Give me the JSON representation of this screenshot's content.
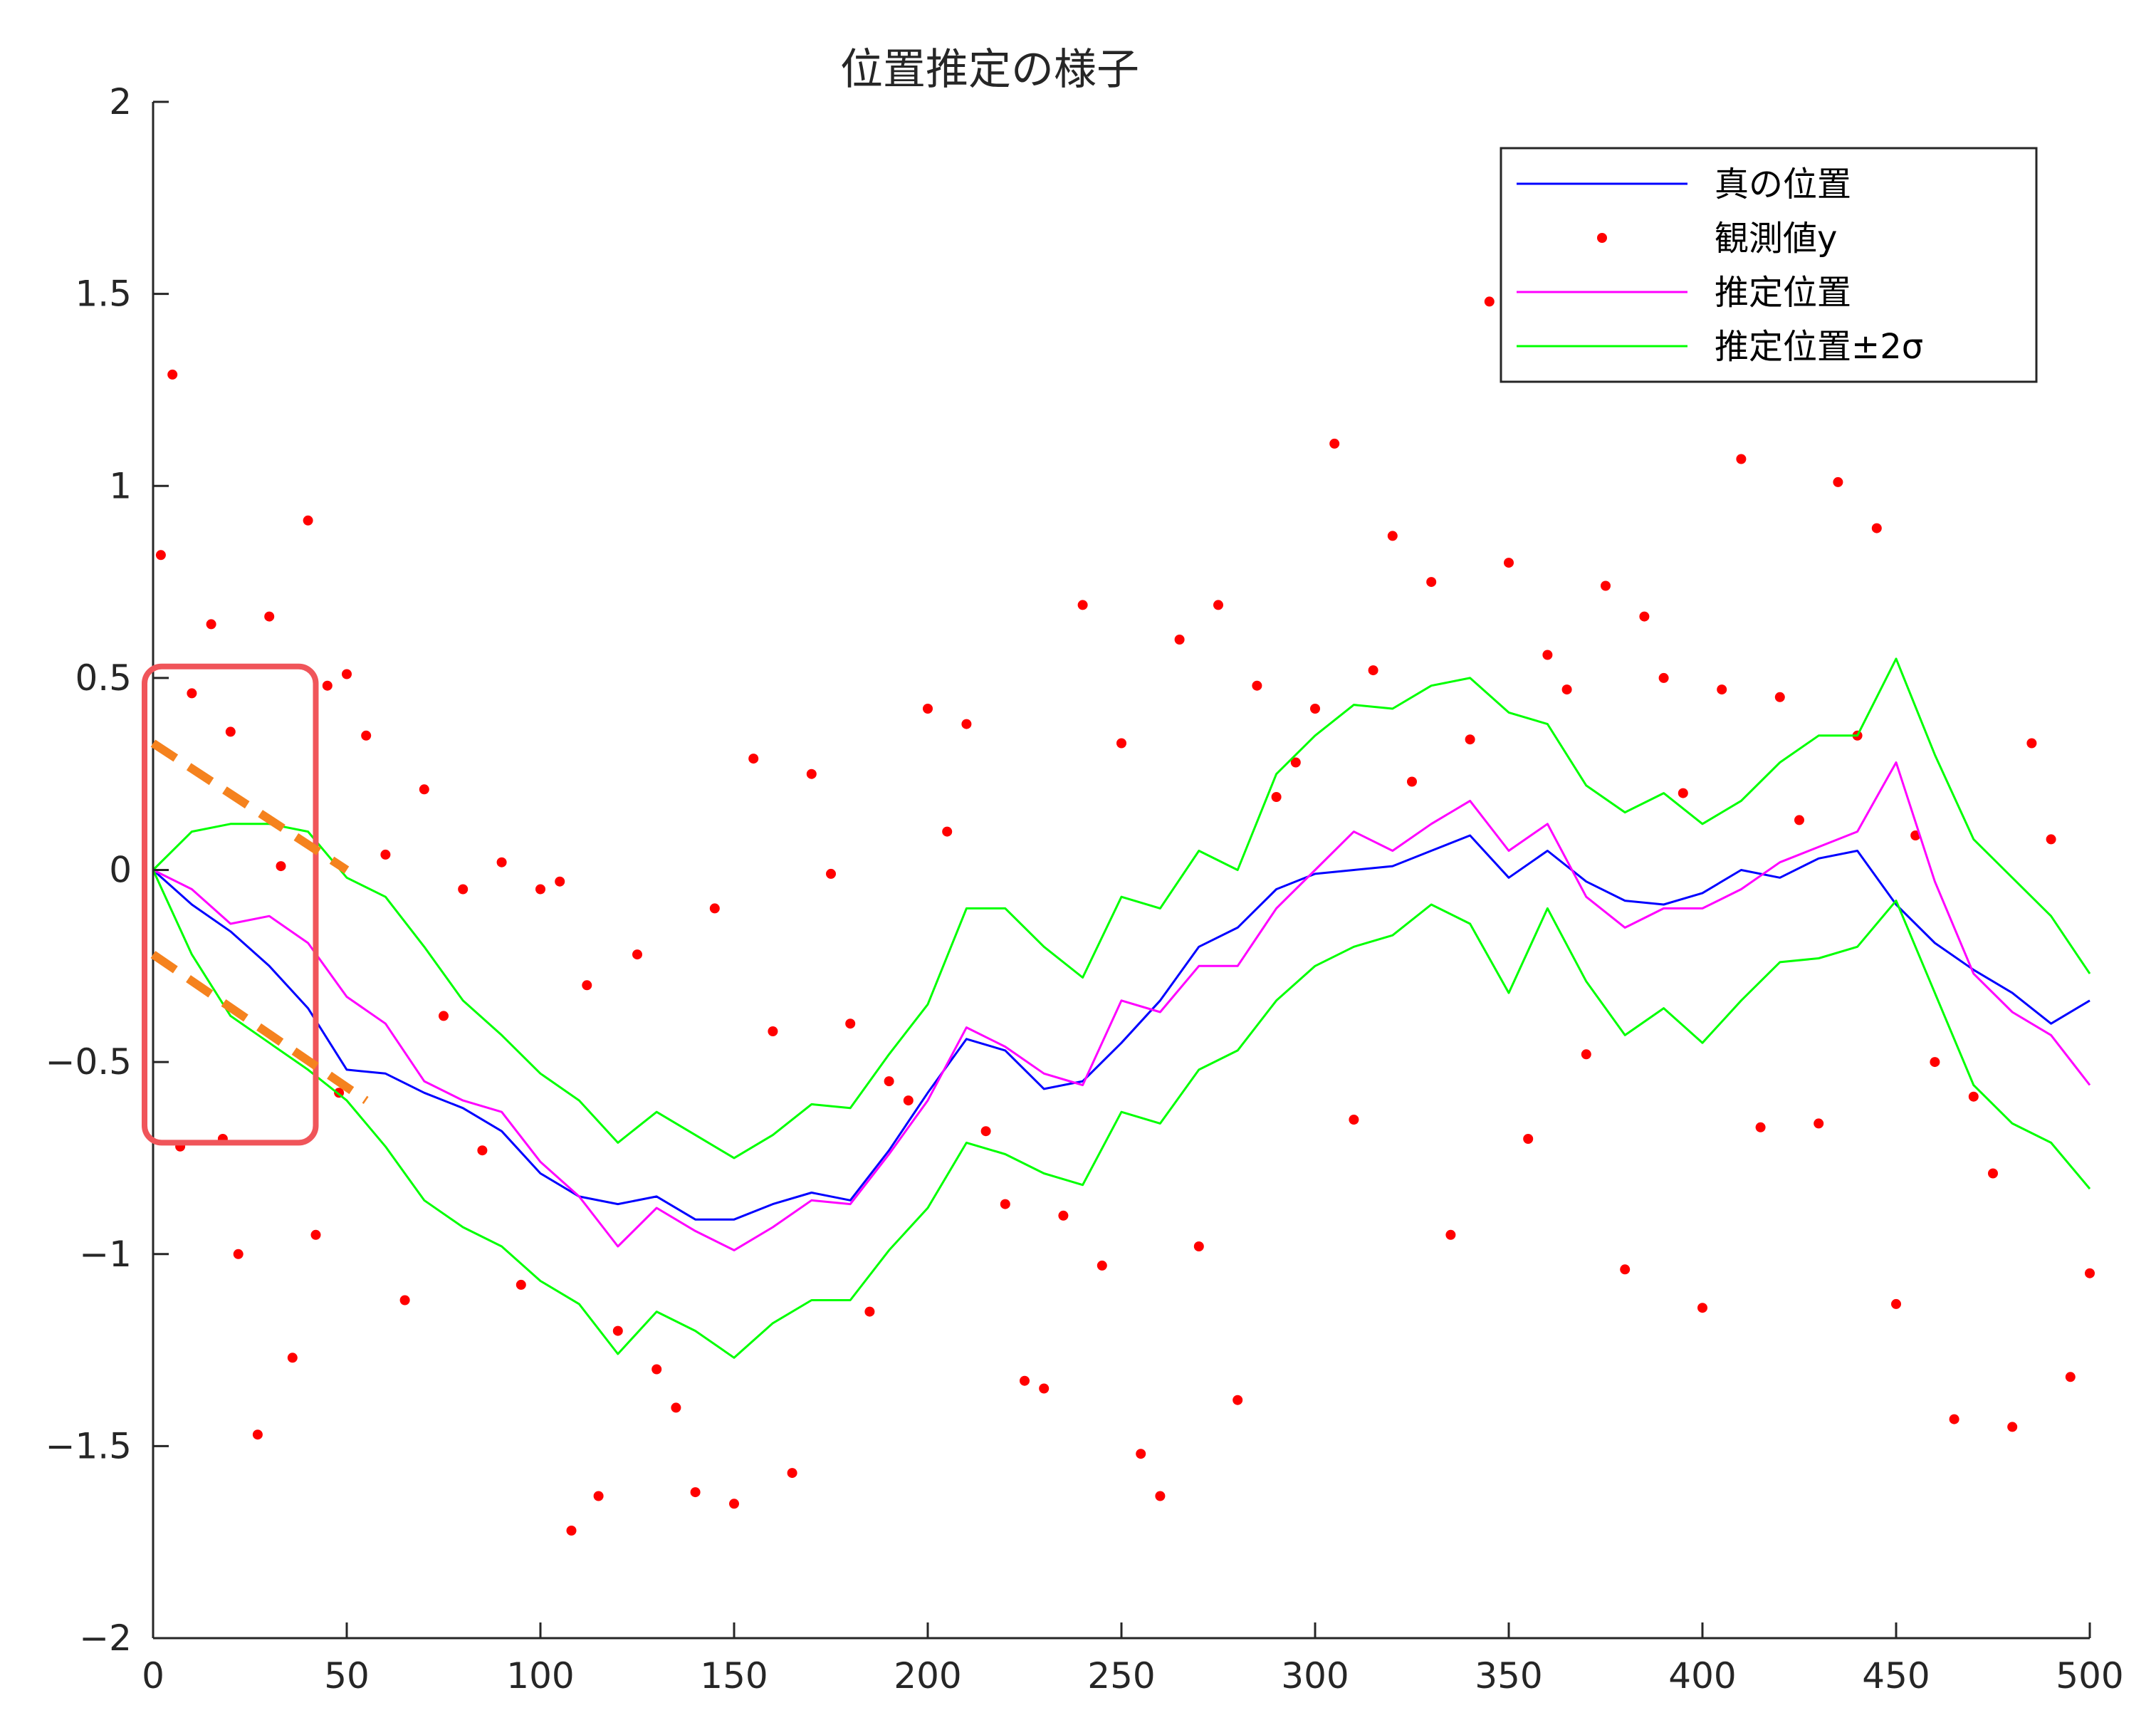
{
  "chart_data": {
    "type": "line",
    "title": "位置推定の様子",
    "xlabel": "",
    "ylabel": "",
    "xlim": [
      0,
      500
    ],
    "ylim": [
      -2,
      2
    ],
    "x_ticks": [
      0,
      50,
      100,
      150,
      200,
      250,
      300,
      350,
      400,
      450,
      500
    ],
    "x_tick_labels": [
      "0",
      "50",
      "100",
      "150",
      "200",
      "250",
      "300",
      "350",
      "400",
      "450",
      "500"
    ],
    "y_ticks": [
      2,
      1.5,
      1,
      0.5,
      0,
      -0.5,
      -1,
      -1.5,
      -2
    ],
    "y_tick_labels": [
      "2",
      "1.5",
      "1",
      "0.5",
      "0",
      "−0.5",
      "−1",
      "−1.5",
      "−2"
    ],
    "grid": false,
    "legend_position": "top-right",
    "series": [
      {
        "name": "真の位置",
        "style": "line",
        "color": "#0000ff",
        "x": [
          0,
          10,
          20,
          30,
          40,
          50,
          60,
          70,
          80,
          90,
          100,
          110,
          120,
          130,
          140,
          150,
          160,
          170,
          180,
          190,
          200,
          210,
          220,
          230,
          240,
          250,
          260,
          270,
          280,
          290,
          300,
          310,
          320,
          330,
          340,
          350,
          360,
          370,
          380,
          390,
          400,
          410,
          420,
          430,
          440,
          450,
          460,
          470,
          480,
          490,
          500
        ],
        "y": [
          0,
          -0.09,
          -0.16,
          -0.25,
          -0.36,
          -0.52,
          -0.53,
          -0.58,
          -0.62,
          -0.68,
          -0.79,
          -0.85,
          -0.87,
          -0.85,
          -0.91,
          -0.91,
          -0.87,
          -0.84,
          -0.86,
          -0.73,
          -0.58,
          -0.44,
          -0.47,
          -0.57,
          -0.55,
          -0.45,
          -0.34,
          -0.2,
          -0.15,
          -0.05,
          -0.01,
          0.0,
          0.01,
          0.05,
          0.09,
          -0.02,
          0.05,
          -0.03,
          -0.08,
          -0.09,
          -0.06,
          0.0,
          -0.02,
          0.03,
          0.05,
          -0.09,
          -0.19,
          -0.26,
          -0.32,
          -0.4,
          -0.34
        ]
      },
      {
        "name": "観測値y",
        "style": "markers",
        "color": "#ff0000",
        "x": [
          2,
          5,
          7,
          10,
          15,
          18,
          20,
          22,
          27,
          30,
          33,
          36,
          40,
          42,
          45,
          48,
          50,
          55,
          60,
          65,
          70,
          75,
          80,
          85,
          90,
          95,
          100,
          105,
          108,
          112,
          115,
          120,
          125,
          130,
          135,
          140,
          145,
          150,
          155,
          160,
          165,
          170,
          175,
          180,
          185,
          190,
          195,
          200,
          205,
          210,
          215,
          220,
          225,
          230,
          235,
          240,
          245,
          250,
          255,
          260,
          265,
          270,
          275,
          280,
          285,
          290,
          295,
          300,
          305,
          310,
          315,
          320,
          325,
          330,
          335,
          340,
          345,
          350,
          355,
          360,
          365,
          370,
          375,
          380,
          385,
          390,
          395,
          400,
          405,
          410,
          415,
          420,
          425,
          430,
          435,
          440,
          445,
          450,
          455,
          460,
          465,
          470,
          475,
          480,
          485,
          490,
          495,
          500
        ],
        "y": [
          0.82,
          1.29,
          -0.72,
          0.46,
          0.64,
          -0.7,
          0.36,
          -1.0,
          -1.47,
          0.66,
          0.01,
          -1.27,
          0.91,
          -0.95,
          0.48,
          -0.58,
          0.51,
          0.35,
          0.04,
          -1.12,
          0.21,
          -0.38,
          -0.05,
          -0.73,
          0.02,
          -1.08,
          -0.05,
          -0.03,
          -1.72,
          -0.3,
          -1.63,
          -1.2,
          -0.22,
          -1.3,
          -1.4,
          -1.62,
          -0.1,
          -1.65,
          0.29,
          -0.42,
          -1.57,
          0.25,
          -0.01,
          -0.4,
          -1.15,
          -0.55,
          -0.6,
          0.42,
          0.1,
          0.38,
          -0.68,
          -0.87,
          -1.33,
          -1.35,
          -0.9,
          0.69,
          -1.03,
          0.33,
          -1.52,
          -1.63,
          0.6,
          -0.98,
          0.69,
          -1.38,
          0.48,
          0.19,
          0.28,
          0.42,
          1.11,
          -0.65,
          0.52,
          0.87,
          0.23,
          0.75,
          -0.95,
          0.34,
          1.48,
          0.8,
          -0.7,
          0.56,
          0.47,
          -0.48,
          0.74,
          -1.04,
          0.66,
          0.5,
          0.2,
          -1.14,
          0.47,
          1.07,
          -0.67,
          0.45,
          0.13,
          -0.66,
          1.01,
          0.35,
          0.89,
          -1.13,
          0.09,
          -0.5,
          -1.43,
          -0.59,
          -0.79,
          -1.45,
          0.33,
          0.08,
          -1.32,
          -1.05
        ]
      },
      {
        "name": "推定位置",
        "style": "line",
        "color": "#ff00ff",
        "x": [
          0,
          10,
          20,
          30,
          40,
          50,
          60,
          70,
          80,
          90,
          100,
          110,
          120,
          130,
          140,
          150,
          160,
          170,
          180,
          190,
          200,
          210,
          220,
          230,
          240,
          250,
          260,
          270,
          280,
          290,
          300,
          310,
          320,
          330,
          340,
          350,
          360,
          370,
          380,
          390,
          400,
          410,
          420,
          430,
          440,
          450,
          460,
          470,
          480,
          490,
          500
        ],
        "y": [
          0,
          -0.05,
          -0.14,
          -0.12,
          -0.19,
          -0.33,
          -0.4,
          -0.55,
          -0.6,
          -0.63,
          -0.76,
          -0.85,
          -0.98,
          -0.88,
          -0.94,
          -0.99,
          -0.93,
          -0.86,
          -0.87,
          -0.74,
          -0.6,
          -0.41,
          -0.46,
          -0.53,
          -0.56,
          -0.34,
          -0.37,
          -0.25,
          -0.25,
          -0.1,
          0.0,
          0.1,
          0.05,
          0.12,
          0.18,
          0.05,
          0.12,
          -0.07,
          -0.15,
          -0.1,
          -0.1,
          -0.05,
          0.02,
          0.06,
          0.1,
          0.28,
          -0.03,
          -0.27,
          -0.37,
          -0.43,
          -0.56
        ]
      },
      {
        "name": "推定位置±2σ",
        "style": "line",
        "color": "#00ff00",
        "x": [
          0,
          10,
          20,
          30,
          40,
          50,
          60,
          70,
          80,
          90,
          100,
          110,
          120,
          130,
          140,
          150,
          160,
          170,
          180,
          190,
          200,
          210,
          220,
          230,
          240,
          250,
          260,
          270,
          280,
          290,
          300,
          310,
          320,
          330,
          340,
          350,
          360,
          370,
          380,
          390,
          400,
          410,
          420,
          430,
          440,
          450,
          460,
          470,
          480,
          490,
          500
        ],
        "y": [
          0,
          0.1,
          0.12,
          0.12,
          0.1,
          -0.02,
          -0.07,
          -0.2,
          -0.34,
          -0.43,
          -0.53,
          -0.6,
          -0.71,
          -0.63,
          -0.69,
          -0.75,
          -0.69,
          -0.61,
          -0.62,
          -0.48,
          -0.35,
          -0.1,
          -0.1,
          -0.2,
          -0.28,
          -0.07,
          -0.1,
          0.05,
          0.0,
          0.25,
          0.35,
          0.43,
          0.42,
          0.48,
          0.5,
          0.41,
          0.38,
          0.22,
          0.15,
          0.2,
          0.12,
          0.18,
          0.28,
          0.35,
          0.35,
          0.55,
          0.3,
          0.08,
          -0.02,
          -0.12,
          -0.27
        ]
      },
      {
        "name": "",
        "style": "line",
        "color": "#00ff00",
        "x": [
          0,
          10,
          20,
          30,
          40,
          50,
          60,
          70,
          80,
          90,
          100,
          110,
          120,
          130,
          140,
          150,
          160,
          170,
          180,
          190,
          200,
          210,
          220,
          230,
          240,
          250,
          260,
          270,
          280,
          290,
          300,
          310,
          320,
          330,
          340,
          350,
          360,
          370,
          380,
          390,
          400,
          410,
          420,
          430,
          440,
          450,
          460,
          470,
          480,
          490,
          500
        ],
        "y": [
          0,
          -0.22,
          -0.38,
          -0.45,
          -0.52,
          -0.6,
          -0.72,
          -0.86,
          -0.93,
          -0.98,
          -1.07,
          -1.13,
          -1.26,
          -1.15,
          -1.2,
          -1.27,
          -1.18,
          -1.12,
          -1.12,
          -0.99,
          -0.88,
          -0.71,
          -0.74,
          -0.79,
          -0.82,
          -0.63,
          -0.66,
          -0.52,
          -0.47,
          -0.34,
          -0.25,
          -0.2,
          -0.17,
          -0.09,
          -0.14,
          -0.32,
          -0.1,
          -0.29,
          -0.43,
          -0.36,
          -0.45,
          -0.34,
          -0.24,
          -0.23,
          -0.2,
          -0.08,
          -0.32,
          -0.56,
          -0.66,
          -0.71,
          -0.83
        ]
      }
    ],
    "annotations": {
      "highlight_box": {
        "x_range": [
          0,
          42
        ],
        "y_range": [
          -0.71,
          0.53
        ],
        "color": "#f0555a"
      },
      "dashed_lines": [
        {
          "from": [
            0,
            0.33
          ],
          "to": [
            50,
            0.0
          ],
          "color": "#f5821e"
        },
        {
          "from": [
            0,
            -0.22
          ],
          "to": [
            55,
            -0.6
          ],
          "color": "#f5821e"
        }
      ]
    }
  }
}
